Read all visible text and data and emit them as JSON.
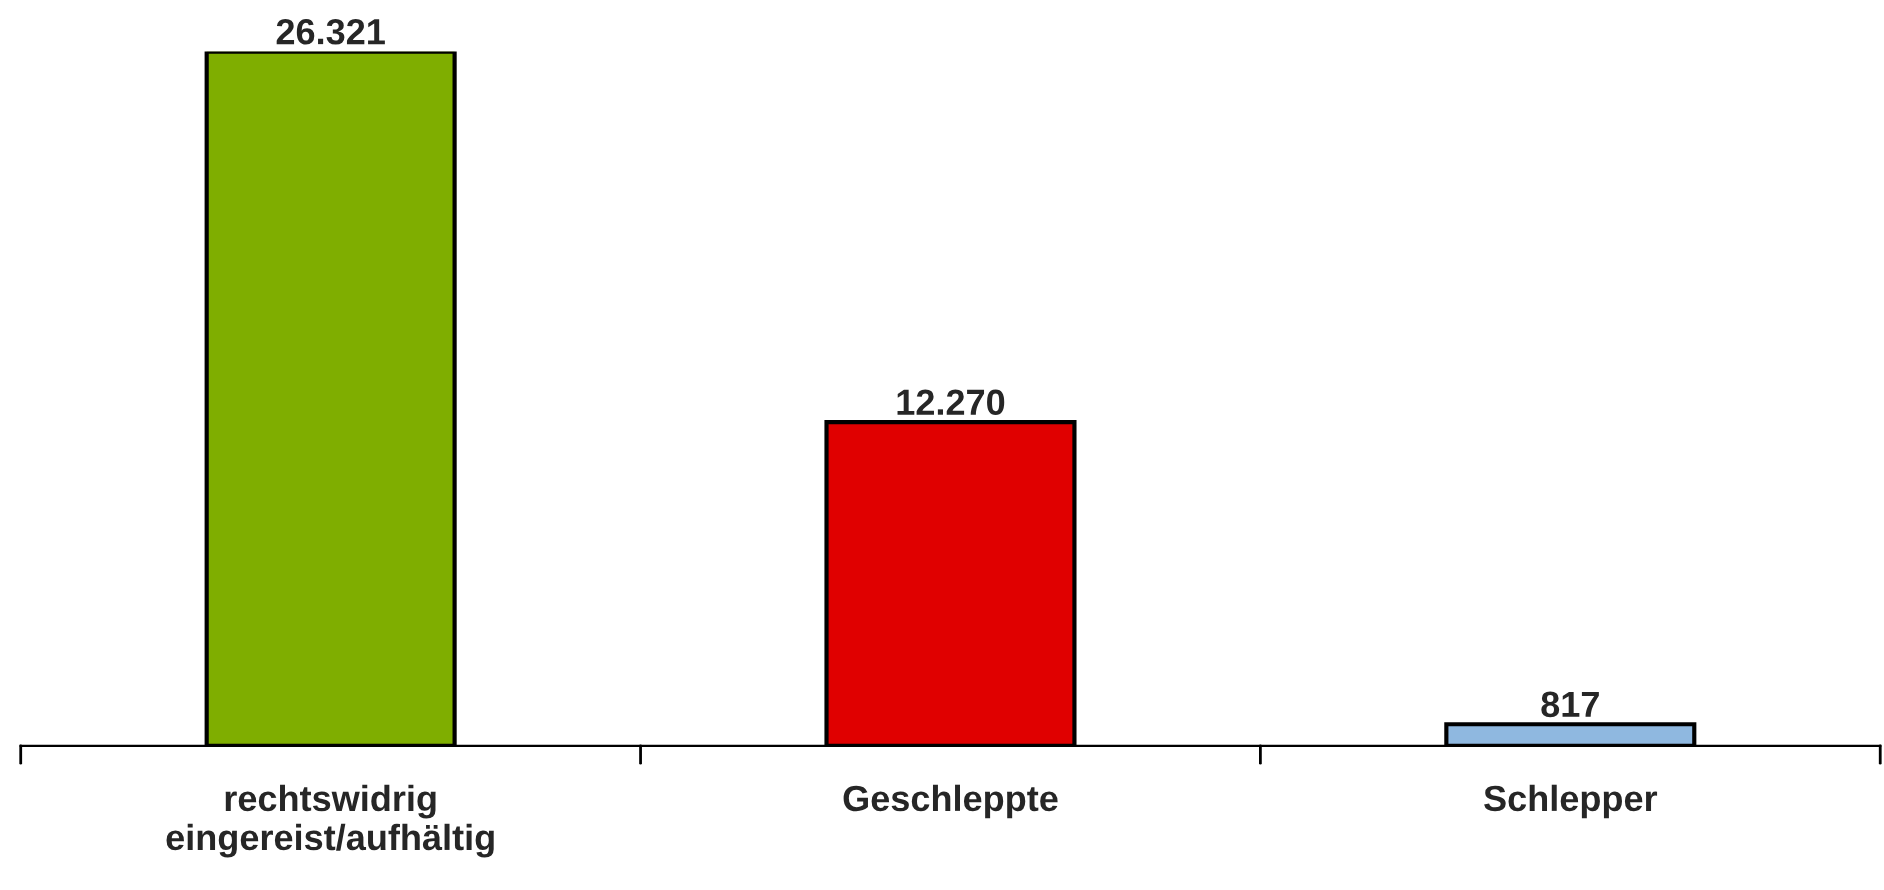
{
  "chart_data": {
    "type": "bar",
    "categories": [
      "rechtswidrig\neingereist/aufhältig",
      "Geschleppte",
      "Schlepper"
    ],
    "values": [
      26321,
      12270,
      817
    ],
    "colors": [
      "#7fae00",
      "#e00000",
      "#8fb8e0"
    ],
    "value_labels": [
      "26.321",
      "12.270",
      "817"
    ],
    "grid": false,
    "legend": false
  }
}
